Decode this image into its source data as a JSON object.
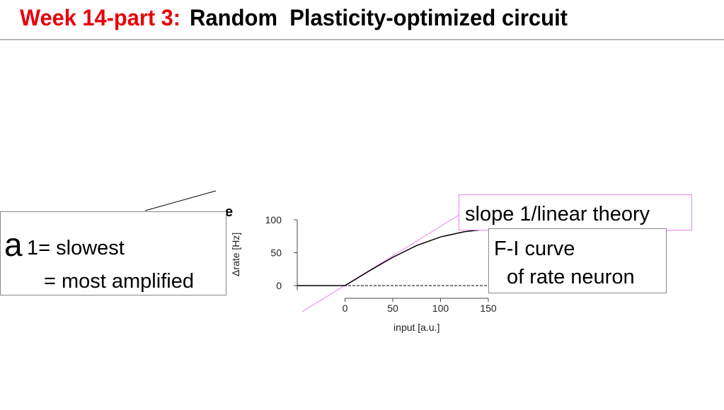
{
  "header": {
    "title_part": "Week 14-part 3:",
    "title": "Random  Plasticity-optimized circuit"
  },
  "callouts": {
    "eigen": {
      "symbol": "a",
      "line1": "1= slowest",
      "line2": "= most amplified"
    },
    "slope": "slope 1/linear theory",
    "fi": {
      "line1": "F-I curve",
      "line2": "of rate neuron"
    }
  },
  "chart_data": {
    "type": "line",
    "panel_label": "e",
    "x_label": "input [a.u.]",
    "y_label": "Δrate [Hz]",
    "xlim": [
      -50,
      150
    ],
    "ylim": [
      -5,
      100
    ],
    "xticks": [
      0,
      50,
      100,
      150
    ],
    "yticks": [
      0,
      50,
      100
    ],
    "x": [
      -50,
      0,
      25,
      50,
      75,
      100,
      125,
      150
    ],
    "series": [
      {
        "color": "#000000",
        "values": [
          0,
          0,
          22,
          43,
          61,
          74,
          82,
          86
        ]
      }
    ],
    "zero_line": 0,
    "linear_theory": {
      "x": [
        -45,
        120
      ],
      "y": [
        -40,
        108
      ],
      "color": "#ee82ee"
    }
  }
}
